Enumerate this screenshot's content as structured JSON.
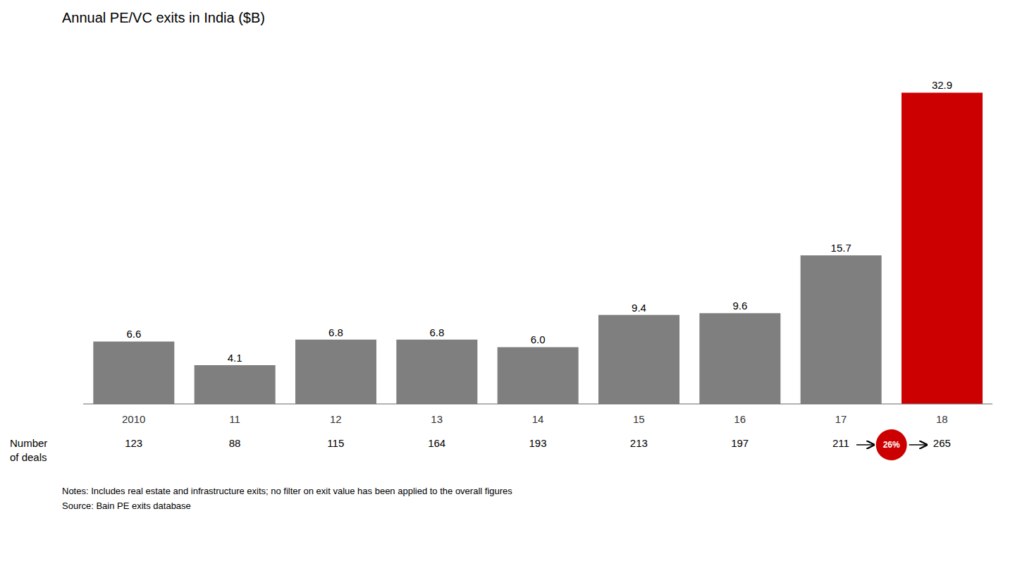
{
  "chart_data": {
    "type": "bar",
    "title": "Annual PE/VC exits in India ($B)",
    "categories": [
      "2010",
      "11",
      "12",
      "13",
      "14",
      "15",
      "16",
      "17",
      "18"
    ],
    "values": [
      6.6,
      4.1,
      6.8,
      6.8,
      6.0,
      9.4,
      9.6,
      15.7,
      32.9
    ],
    "value_labels": [
      "6.6",
      "4.1",
      "6.8",
      "6.8",
      "6.0",
      "9.4",
      "9.6",
      "15.7",
      "32.9"
    ],
    "data_labels": true,
    "colors": [
      "#7f7f7f",
      "#7f7f7f",
      "#7f7f7f",
      "#7f7f7f",
      "#7f7f7f",
      "#7f7f7f",
      "#7f7f7f",
      "#7f7f7f",
      "#cc0000"
    ],
    "ylim": [
      0,
      38
    ],
    "tick_labels": "x",
    "grid": false,
    "deals_label": "Number\nof deals",
    "deal_counts": [
      123,
      88,
      115,
      164,
      193,
      213,
      197,
      211,
      265
    ],
    "growth_annotation": {
      "text": "26%",
      "color": "#cc0000"
    },
    "notes": "Notes: Includes real estate and infrastructure exits; no filter on exit value has been applied to the overall figures",
    "source": "Source: Bain PE exits database"
  }
}
